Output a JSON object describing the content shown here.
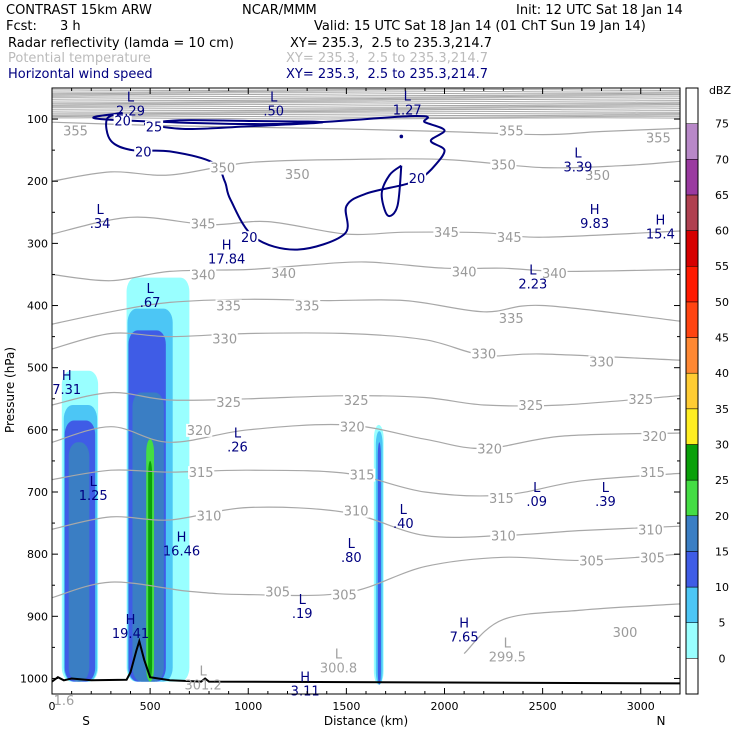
{
  "header": {
    "model": "CONTRAST 15km ARW",
    "org": "NCAR/MMM",
    "init": "Init: 12 UTC Sat 18 Jan 14",
    "fcst_label": "Fcst:",
    "fcst_value": "3 h",
    "valid": "Valid: 15 UTC Sat 18 Jan 14 (01 ChT Sun 19 Jan 14)",
    "fields": [
      {
        "name": "Radar reflectivity (lamda = 10 cm)",
        "xy": "XY= 235.3,  2.5 to 235.3,214.7"
      },
      {
        "name": "Potential temperature",
        "xy": "XY= 235.3,  2.5 to 235.3,214.7"
      },
      {
        "name": "Horizontal wind speed",
        "xy": "XY= 235.3,  2.5 to 235.3,214.7"
      }
    ]
  },
  "colors": {
    "wind": "#000080",
    "theta": "#a8a8a8",
    "terrain": "#000000"
  },
  "chart_data": {
    "type": "cross-section",
    "xlabel": "Distance (km)",
    "ylabel": "Pressure (hPa)",
    "xlim": [
      0,
      3200
    ],
    "ylim": [
      1025,
      50
    ],
    "x_ticks": [
      0,
      500,
      1000,
      1500,
      2000,
      2500,
      3000
    ],
    "y_ticks": [
      100,
      200,
      300,
      400,
      500,
      600,
      700,
      800,
      900,
      1000
    ],
    "end_labels": {
      "left": "S",
      "right": "N"
    },
    "colorbar": {
      "unit": "dBZ",
      "levels": [
        0,
        5,
        10,
        15,
        20,
        25,
        30,
        35,
        40,
        45,
        50,
        55,
        60,
        65,
        70,
        75
      ],
      "colors": [
        "#ffffff",
        "#99ffff",
        "#4cc6f5",
        "#3f5ce6",
        "#3a7ec4",
        "#44dd44",
        "#0aa00a",
        "#ffee22",
        "#ffcc33",
        "#ff8833",
        "#ff4411",
        "#ff1a00",
        "#d60000",
        "#b04050",
        "#9a3aa0",
        "#b888c8"
      ]
    },
    "theta_contours": [
      {
        "label": "355",
        "points": [
          [
            0,
            105
          ],
          [
            500,
            110
          ],
          [
            1000,
            113
          ],
          [
            1500,
            116
          ],
          [
            2000,
            120
          ],
          [
            2500,
            125
          ],
          [
            2800,
            120
          ],
          [
            3200,
            115
          ]
        ]
      },
      {
        "label": "350",
        "points": [
          [
            0,
            200
          ],
          [
            300,
            185
          ],
          [
            600,
            190
          ],
          [
            1000,
            170
          ],
          [
            1500,
            165
          ],
          [
            2000,
            165
          ],
          [
            2500,
            178
          ],
          [
            2900,
            175
          ],
          [
            3200,
            168
          ]
        ]
      },
      {
        "label": "345",
        "points": [
          [
            0,
            285
          ],
          [
            400,
            258
          ],
          [
            800,
            270
          ],
          [
            1100,
            265
          ],
          [
            1500,
            285
          ],
          [
            1800,
            282
          ],
          [
            2200,
            283
          ],
          [
            2500,
            290
          ],
          [
            3200,
            280
          ]
        ]
      },
      {
        "label": "340",
        "points": [
          [
            0,
            350
          ],
          [
            300,
            360
          ],
          [
            600,
            345
          ],
          [
            1000,
            342
          ],
          [
            1300,
            335
          ],
          [
            1600,
            330
          ],
          [
            2000,
            340
          ],
          [
            2300,
            340
          ],
          [
            2600,
            345
          ],
          [
            3200,
            342
          ]
        ]
      },
      {
        "label": "335",
        "points": [
          [
            0,
            430
          ],
          [
            300,
            410
          ],
          [
            600,
            395
          ],
          [
            1000,
            390
          ],
          [
            1400,
            392
          ],
          [
            1800,
            392
          ],
          [
            2200,
            410
          ],
          [
            2500,
            400
          ],
          [
            3200,
            425
          ]
        ]
      },
      {
        "label": "330",
        "points": [
          [
            0,
            470
          ],
          [
            300,
            445
          ],
          [
            600,
            450
          ],
          [
            1000,
            445
          ],
          [
            1500,
            445
          ],
          [
            1900,
            455
          ],
          [
            2200,
            480
          ],
          [
            2500,
            478
          ],
          [
            3200,
            488
          ]
        ]
      },
      {
        "label": "325",
        "points": [
          [
            0,
            560
          ],
          [
            300,
            540
          ],
          [
            600,
            552
          ],
          [
            1000,
            550
          ],
          [
            1500,
            545
          ],
          [
            1900,
            548
          ],
          [
            2200,
            560
          ],
          [
            2600,
            560
          ],
          [
            3200,
            545
          ]
        ]
      },
      {
        "label": "320",
        "points": [
          [
            0,
            620
          ],
          [
            300,
            595
          ],
          [
            600,
            620
          ],
          [
            1000,
            600
          ],
          [
            1500,
            592
          ],
          [
            1900,
            615
          ],
          [
            2200,
            630
          ],
          [
            2600,
            610
          ],
          [
            3200,
            605
          ]
        ]
      },
      {
        "label": "315",
        "points": [
          [
            0,
            680
          ],
          [
            300,
            665
          ],
          [
            600,
            668
          ],
          [
            1000,
            665
          ],
          [
            1500,
            670
          ],
          [
            1900,
            700
          ],
          [
            2300,
            705
          ],
          [
            2700,
            682
          ],
          [
            3200,
            670
          ]
        ]
      },
      {
        "label": "310",
        "points": [
          [
            0,
            760
          ],
          [
            300,
            740
          ],
          [
            600,
            745
          ],
          [
            1000,
            725
          ],
          [
            1500,
            733
          ],
          [
            1900,
            770
          ],
          [
            2300,
            770
          ],
          [
            2700,
            762
          ],
          [
            3200,
            755
          ]
        ]
      },
      {
        "label": "305",
        "points": [
          [
            0,
            870
          ],
          [
            300,
            845
          ],
          [
            700,
            860
          ],
          [
            1000,
            865
          ],
          [
            1500,
            862
          ],
          [
            1900,
            820
          ],
          [
            2300,
            805
          ],
          [
            2700,
            810
          ],
          [
            3200,
            800
          ]
        ]
      },
      {
        "label": "300",
        "points": [
          [
            2100,
            960
          ],
          [
            2300,
            905
          ],
          [
            2700,
            890
          ],
          [
            3200,
            880
          ]
        ]
      }
    ],
    "theta_labels": [
      {
        "text": "355",
        "x": 120,
        "p": 118
      },
      {
        "text": "355",
        "x": 2340,
        "p": 118
      },
      {
        "text": "355",
        "x": 3090,
        "p": 130
      },
      {
        "text": "350",
        "x": 870,
        "p": 178
      },
      {
        "text": "350",
        "x": 1250,
        "p": 188
      },
      {
        "text": "350",
        "x": 2300,
        "p": 173
      },
      {
        "text": "350",
        "x": 2780,
        "p": 190
      },
      {
        "text": "345",
        "x": 770,
        "p": 268
      },
      {
        "text": "345",
        "x": 2010,
        "p": 282
      },
      {
        "text": "345",
        "x": 2330,
        "p": 290
      },
      {
        "text": "340",
        "x": 770,
        "p": 350
      },
      {
        "text": "340",
        "x": 1180,
        "p": 348
      },
      {
        "text": "340",
        "x": 2100,
        "p": 345
      },
      {
        "text": "340",
        "x": 2560,
        "p": 348
      },
      {
        "text": "335",
        "x": 900,
        "p": 400
      },
      {
        "text": "335",
        "x": 1300,
        "p": 400
      },
      {
        "text": "335",
        "x": 2340,
        "p": 420
      },
      {
        "text": "330",
        "x": 880,
        "p": 453
      },
      {
        "text": "330",
        "x": 2200,
        "p": 477
      },
      {
        "text": "330",
        "x": 2800,
        "p": 490
      },
      {
        "text": "325",
        "x": 900,
        "p": 555
      },
      {
        "text": "325",
        "x": 1550,
        "p": 552
      },
      {
        "text": "325",
        "x": 2440,
        "p": 560
      },
      {
        "text": "325",
        "x": 3000,
        "p": 550
      },
      {
        "text": "320",
        "x": 750,
        "p": 600
      },
      {
        "text": "320",
        "x": 1530,
        "p": 595
      },
      {
        "text": "320",
        "x": 2230,
        "p": 630
      },
      {
        "text": "320",
        "x": 3070,
        "p": 610
      },
      {
        "text": "315",
        "x": 760,
        "p": 668
      },
      {
        "text": "315",
        "x": 1580,
        "p": 672
      },
      {
        "text": "315",
        "x": 2290,
        "p": 710
      },
      {
        "text": "315",
        "x": 3060,
        "p": 668
      },
      {
        "text": "310",
        "x": 800,
        "p": 738
      },
      {
        "text": "310",
        "x": 1550,
        "p": 730
      },
      {
        "text": "310",
        "x": 2300,
        "p": 770
      },
      {
        "text": "310",
        "x": 3050,
        "p": 760
      },
      {
        "text": "305",
        "x": 1150,
        "p": 860
      },
      {
        "text": "305",
        "x": 1490,
        "p": 865
      },
      {
        "text": "305",
        "x": 2750,
        "p": 810
      },
      {
        "text": "305",
        "x": 3060,
        "p": 805
      },
      {
        "text": "300",
        "x": 2920,
        "p": 925
      }
    ],
    "point_labels": [
      {
        "letter": "L",
        "value": "2.29",
        "x": 400,
        "p": 72
      },
      {
        "letter": "L",
        "value": ".50",
        "x": 1130,
        "p": 72
      },
      {
        "letter": "L",
        "value": "1.27",
        "x": 1810,
        "p": 70
      },
      {
        "letter": "L",
        "value": "3.39",
        "x": 2680,
        "p": 162
      },
      {
        "letter": "L",
        "value": ".34",
        "x": 245,
        "p": 253
      },
      {
        "letter": "H",
        "value": "9.83",
        "x": 2765,
        "p": 253
      },
      {
        "letter": "H",
        "value": "15.4",
        "x": 3100,
        "p": 270
      },
      {
        "letter": "H",
        "value": "17.84",
        "x": 890,
        "p": 310
      },
      {
        "letter": "L",
        "value": "2.23",
        "x": 2450,
        "p": 350
      },
      {
        "letter": "L",
        "value": ".67",
        "x": 500,
        "p": 380
      },
      {
        "letter": "H",
        "value": "7.31",
        "x": 75,
        "p": 520
      },
      {
        "letter": "L",
        "value": ".26",
        "x": 945,
        "p": 612
      },
      {
        "letter": "L",
        "value": "1.25",
        "x": 210,
        "p": 690
      },
      {
        "letter": "L",
        "value": ".09",
        "x": 2470,
        "p": 700
      },
      {
        "letter": "L",
        "value": ".39",
        "x": 2820,
        "p": 700
      },
      {
        "letter": "L",
        "value": ".40",
        "x": 1790,
        "p": 735
      },
      {
        "letter": "H",
        "value": "16.46",
        "x": 660,
        "p": 780
      },
      {
        "letter": "L",
        "value": ".80",
        "x": 1525,
        "p": 790
      },
      {
        "letter": "L",
        "value": ".19",
        "x": 1275,
        "p": 880
      },
      {
        "letter": "H",
        "value": "19.41",
        "x": 400,
        "p": 912
      },
      {
        "letter": "H",
        "value": "7.65",
        "x": 2100,
        "p": 918
      },
      {
        "letter": "H",
        "value": "3.11",
        "x": 1290,
        "p": 1005
      }
    ],
    "theta_point_labels": [
      {
        "letter": "L",
        "value": "301.2",
        "x": 770,
        "p": 995
      },
      {
        "letter": "L",
        "value": "300.8",
        "x": 1460,
        "p": 968
      },
      {
        "letter": "L",
        "value": "299.5",
        "x": 2320,
        "p": 950
      },
      {
        "letter": "",
        "value": "1.6",
        "x": -40,
        "p": 1020
      }
    ],
    "wind_contours": [
      {
        "label": "20",
        "points": [
          [
            360,
            90
          ],
          [
            250,
            100
          ],
          [
            1130,
            108
          ],
          [
            1850,
            95
          ],
          [
            1900,
            105
          ],
          [
            2000,
            118
          ],
          [
            1930,
            135
          ],
          [
            2000,
            150
          ],
          [
            1950,
            175
          ],
          [
            1880,
            195
          ],
          [
            1800,
            205
          ],
          [
            1600,
            220
          ],
          [
            1500,
            240
          ],
          [
            1490,
            285
          ],
          [
            1250,
            310
          ],
          [
            1030,
            290
          ],
          [
            910,
            230
          ],
          [
            880,
            200
          ],
          [
            820,
            170
          ],
          [
            600,
            152
          ],
          [
            410,
            150
          ],
          [
            300,
            135
          ],
          [
            280,
            100
          ],
          [
            360,
            90
          ]
        ]
      },
      {
        "label": "20",
        "points": [
          [
            1780,
            175
          ],
          [
            1720,
            190
          ],
          [
            1680,
            220
          ],
          [
            1710,
            255
          ],
          [
            1760,
            240
          ],
          [
            1780,
            175
          ]
        ]
      },
      {
        "label": "25",
        "points": [
          [
            470,
            108
          ],
          [
            650,
            102
          ],
          [
            980,
            103
          ],
          [
            1380,
            105
          ],
          [
            980,
            112
          ],
          [
            680,
            116
          ],
          [
            470,
            108
          ]
        ]
      }
    ],
    "wind_labels": [
      {
        "text": "20",
        "x": 360,
        "p": 102
      },
      {
        "text": "25",
        "x": 520,
        "p": 112
      },
      {
        "text": "20",
        "x": 465,
        "p": 152
      },
      {
        "text": "20",
        "x": 1860,
        "p": 195
      },
      {
        "text": "20",
        "x": 1005,
        "p": 290
      }
    ],
    "reflectivity": [
      {
        "level": 5,
        "color": "#99ffff",
        "cells": [
          [
            50,
            235,
            505,
            1005
          ],
          [
            380,
            700,
            355,
            1005
          ],
          [
            1640,
            1690,
            592,
            1010
          ]
        ]
      },
      {
        "level": 10,
        "color": "#4cc6f5",
        "cells": [
          [
            60,
            230,
            560,
            1005
          ],
          [
            385,
            615,
            405,
            1005
          ],
          [
            1650,
            1685,
            602,
            1010
          ]
        ]
      },
      {
        "level": 15,
        "color": "#3f5ce6",
        "cells": [
          [
            65,
            220,
            585,
            1005
          ],
          [
            390,
            580,
            440,
            1005
          ],
          [
            1660,
            1676,
            620,
            1010
          ]
        ]
      },
      {
        "level": 20,
        "color": "#3a7ec4",
        "cells": [
          [
            85,
            190,
            620,
            1005
          ],
          [
            410,
            570,
            540,
            1005
          ]
        ]
      },
      {
        "level": 25,
        "color": "#44dd44",
        "cells": [
          [
            480,
            520,
            615,
            1005
          ]
        ]
      },
      {
        "level": 30,
        "color": "#0aa00a",
        "cells": [
          [
            490,
            510,
            650,
            1000
          ]
        ]
      }
    ],
    "terrain": [
      [
        0,
        1005
      ],
      [
        30,
        998
      ],
      [
        60,
        1003
      ],
      [
        100,
        1000
      ],
      [
        200,
        1003
      ],
      [
        380,
        1002
      ],
      [
        400,
        990
      ],
      [
        430,
        955
      ],
      [
        445,
        940
      ],
      [
        470,
        970
      ],
      [
        500,
        998
      ],
      [
        600,
        1003
      ],
      [
        760,
        1005
      ],
      [
        780,
        1000
      ],
      [
        800,
        1005
      ],
      [
        3200,
        1008
      ]
    ]
  }
}
